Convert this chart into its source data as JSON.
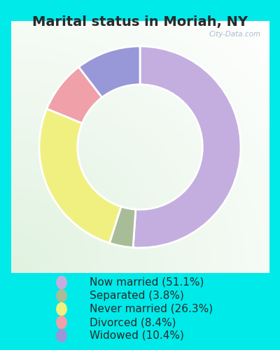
{
  "title": "Marital status in Moriah, NY",
  "slices": [
    51.1,
    3.8,
    26.3,
    8.4,
    10.4
  ],
  "labels": [
    "Now married (51.1%)",
    "Separated (3.8%)",
    "Never married (26.3%)",
    "Divorced (8.4%)",
    "Widowed (10.4%)"
  ],
  "colors": [
    "#c4aee0",
    "#a8bc98",
    "#f0f080",
    "#f0a0a8",
    "#9898d8"
  ],
  "bg_outer": "#00eaea",
  "bg_chart_color": "#c8e8d0",
  "watermark": "City-Data.com",
  "title_fontsize": 14,
  "legend_fontsize": 11,
  "title_color": "#2a2a2a",
  "legend_text_color": "#2a2a2a"
}
